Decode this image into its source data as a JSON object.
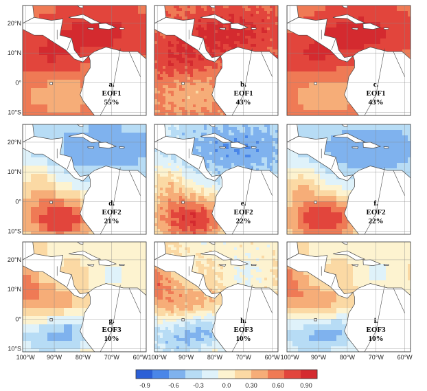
{
  "panels": [
    {
      "letter": "a.",
      "mode": "EOF1",
      "variance": "55%",
      "pattern": "eof1"
    },
    {
      "letter": "b.",
      "mode": "EOF1",
      "variance": "43%",
      "pattern": "eof1"
    },
    {
      "letter": "c.",
      "mode": "EOF1",
      "variance": "43%",
      "pattern": "eof1"
    },
    {
      "letter": "d.",
      "mode": "EOF2",
      "variance": "21%",
      "pattern": "eof2"
    },
    {
      "letter": "e.",
      "mode": "EOF2",
      "variance": "22%",
      "pattern": "eof2"
    },
    {
      "letter": "f.",
      "mode": "EOF2",
      "variance": "22%",
      "pattern": "eof2"
    },
    {
      "letter": "g.",
      "mode": "EOF3",
      "variance": "10%",
      "pattern": "eof3"
    },
    {
      "letter": "h.",
      "mode": "EOF3",
      "variance": "10%",
      "pattern": "eof3"
    },
    {
      "letter": "i.",
      "mode": "EOF3",
      "variance": "10%",
      "pattern": "eof3"
    }
  ],
  "lat_labels": [
    "20°N",
    "10°N",
    "0°",
    "10°S"
  ],
  "lon_labels": [
    "100°W",
    "90°W",
    "80°W",
    "70°W",
    "60°W"
  ],
  "colorbar": {
    "ticks": [
      "-0.9",
      "-0.6",
      "-0.3",
      "0.0",
      "0.30",
      "0.60",
      "0.90"
    ],
    "colors": [
      "#2b5fd6",
      "#4a86e8",
      "#7fb2ee",
      "#b7dcf5",
      "#dff2fa",
      "#fdf3d0",
      "#fbd9a4",
      "#f6ad78",
      "#ef7a55",
      "#e2453c",
      "#d42a2f"
    ]
  }
}
